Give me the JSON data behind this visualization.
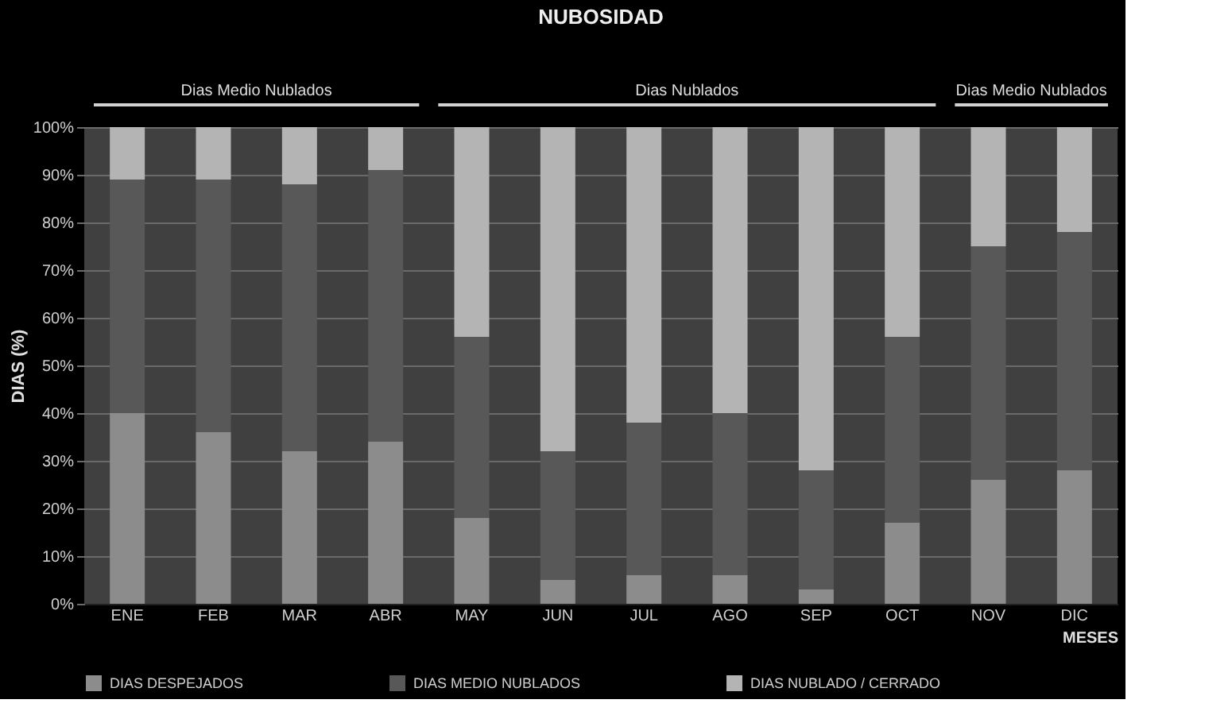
{
  "chart_data": {
    "type": "bar",
    "title": "NUBOSIDAD",
    "xlabel": "MESES",
    "ylabel": "DIAS (%)",
    "categories": [
      "ENE",
      "FEB",
      "MAR",
      "ABR",
      "MAY",
      "JUN",
      "JUL",
      "AGO",
      "SEP",
      "OCT",
      "NOV",
      "DIC"
    ],
    "stacked": true,
    "series": [
      {
        "name": "DIAS DESPEJADOS",
        "color": "#8c8c8c",
        "values": [
          40,
          36,
          32,
          34,
          18,
          5,
          6,
          6,
          3,
          17,
          26,
          28
        ]
      },
      {
        "name": "DIAS MEDIO NUBLADOS",
        "color": "#585858",
        "values": [
          49,
          53,
          56,
          57,
          38,
          27,
          32,
          34,
          25,
          39,
          49,
          50
        ]
      },
      {
        "name": "DIAS NUBLADO / CERRADO",
        "color": "#b4b4b4",
        "values": [
          11,
          11,
          12,
          9,
          44,
          68,
          62,
          60,
          72,
          44,
          25,
          22
        ]
      }
    ],
    "ylim": [
      0,
      100
    ],
    "yticks": [
      {
        "value": 0,
        "label": "0%"
      },
      {
        "value": 10,
        "label": "10%"
      },
      {
        "value": 20,
        "label": "20%"
      },
      {
        "value": 30,
        "label": "30%"
      },
      {
        "value": 40,
        "label": "40%"
      },
      {
        "value": 50,
        "label": "50%"
      },
      {
        "value": 60,
        "label": "60%"
      },
      {
        "value": 70,
        "label": "70%"
      },
      {
        "value": 80,
        "label": "80%"
      },
      {
        "value": 90,
        "label": "90%"
      },
      {
        "value": 100,
        "label": "100%"
      }
    ],
    "annotations": [
      "Dias Medio Nublados",
      "Dias Nublados",
      "Dias Medio Nublados"
    ],
    "grid": "y",
    "legend": "bottom"
  }
}
